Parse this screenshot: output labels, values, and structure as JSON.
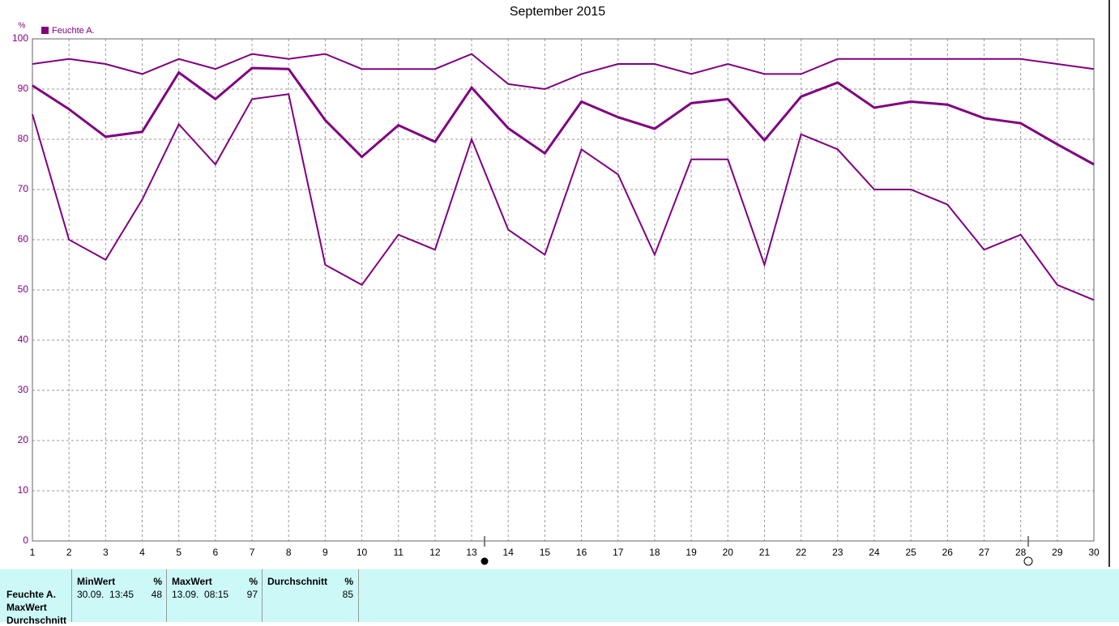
{
  "chart_data": {
    "type": "line",
    "title": "September 2015",
    "ylabel": "%",
    "legend": {
      "label": "Feuchte A.",
      "color": "#800080"
    },
    "x": [
      1,
      2,
      3,
      4,
      5,
      6,
      7,
      8,
      9,
      10,
      11,
      12,
      13,
      14,
      15,
      16,
      17,
      18,
      19,
      20,
      21,
      22,
      23,
      24,
      25,
      26,
      27,
      28,
      29,
      30
    ],
    "xlim": [
      1,
      30
    ],
    "xticks": [
      1,
      2,
      3,
      4,
      5,
      6,
      7,
      8,
      9,
      10,
      11,
      12,
      13,
      14,
      15,
      16,
      17,
      18,
      19,
      20,
      21,
      22,
      23,
      24,
      25,
      26,
      27,
      28,
      29,
      30
    ],
    "ylim": [
      0,
      100
    ],
    "yticks": [
      0,
      10,
      20,
      30,
      40,
      50,
      60,
      70,
      80,
      90,
      100
    ],
    "grid": true,
    "series": [
      {
        "color": "#800080",
        "values": [
          95,
          96,
          95,
          93,
          96,
          94,
          97,
          96,
          97,
          94,
          94,
          94,
          97,
          91,
          90,
          93,
          95,
          95,
          93,
          95,
          93,
          93,
          96,
          96,
          96,
          96,
          96,
          96,
          95,
          94
        ]
      },
      {
        "color": "#800080",
        "values": [
          90.7,
          86,
          80.5,
          81.5,
          93.3,
          88,
          94.2,
          94,
          83.8,
          76.5,
          82.8,
          79.5,
          90.3,
          82.2,
          77.2,
          87.5,
          84.4,
          82.1,
          87.2,
          88,
          79.8,
          88.5,
          91.3,
          86.3,
          87.5,
          86.9,
          84.2,
          83.2,
          79,
          75
        ]
      },
      {
        "color": "#800080",
        "values": [
          85,
          60,
          56,
          68,
          83,
          75,
          88,
          89,
          55,
          51,
          61,
          58,
          80,
          62,
          57,
          78,
          73,
          57,
          76,
          76,
          55,
          81,
          78,
          70,
          70,
          67,
          58,
          61,
          51,
          48
        ]
      }
    ]
  },
  "table": {
    "row_labels": [
      "Feuchte A.",
      "MaxWert",
      "Durchschnitt"
    ],
    "columns": [
      {
        "header": "MinWert",
        "unit": "%",
        "time": "30.09.  13:45",
        "value": "48"
      },
      {
        "header": "MaxWert",
        "unit": "%",
        "time": "13.09.  08:15",
        "value": "97"
      },
      {
        "header": "Durchschnitt",
        "unit": "%",
        "value": "85"
      }
    ]
  }
}
